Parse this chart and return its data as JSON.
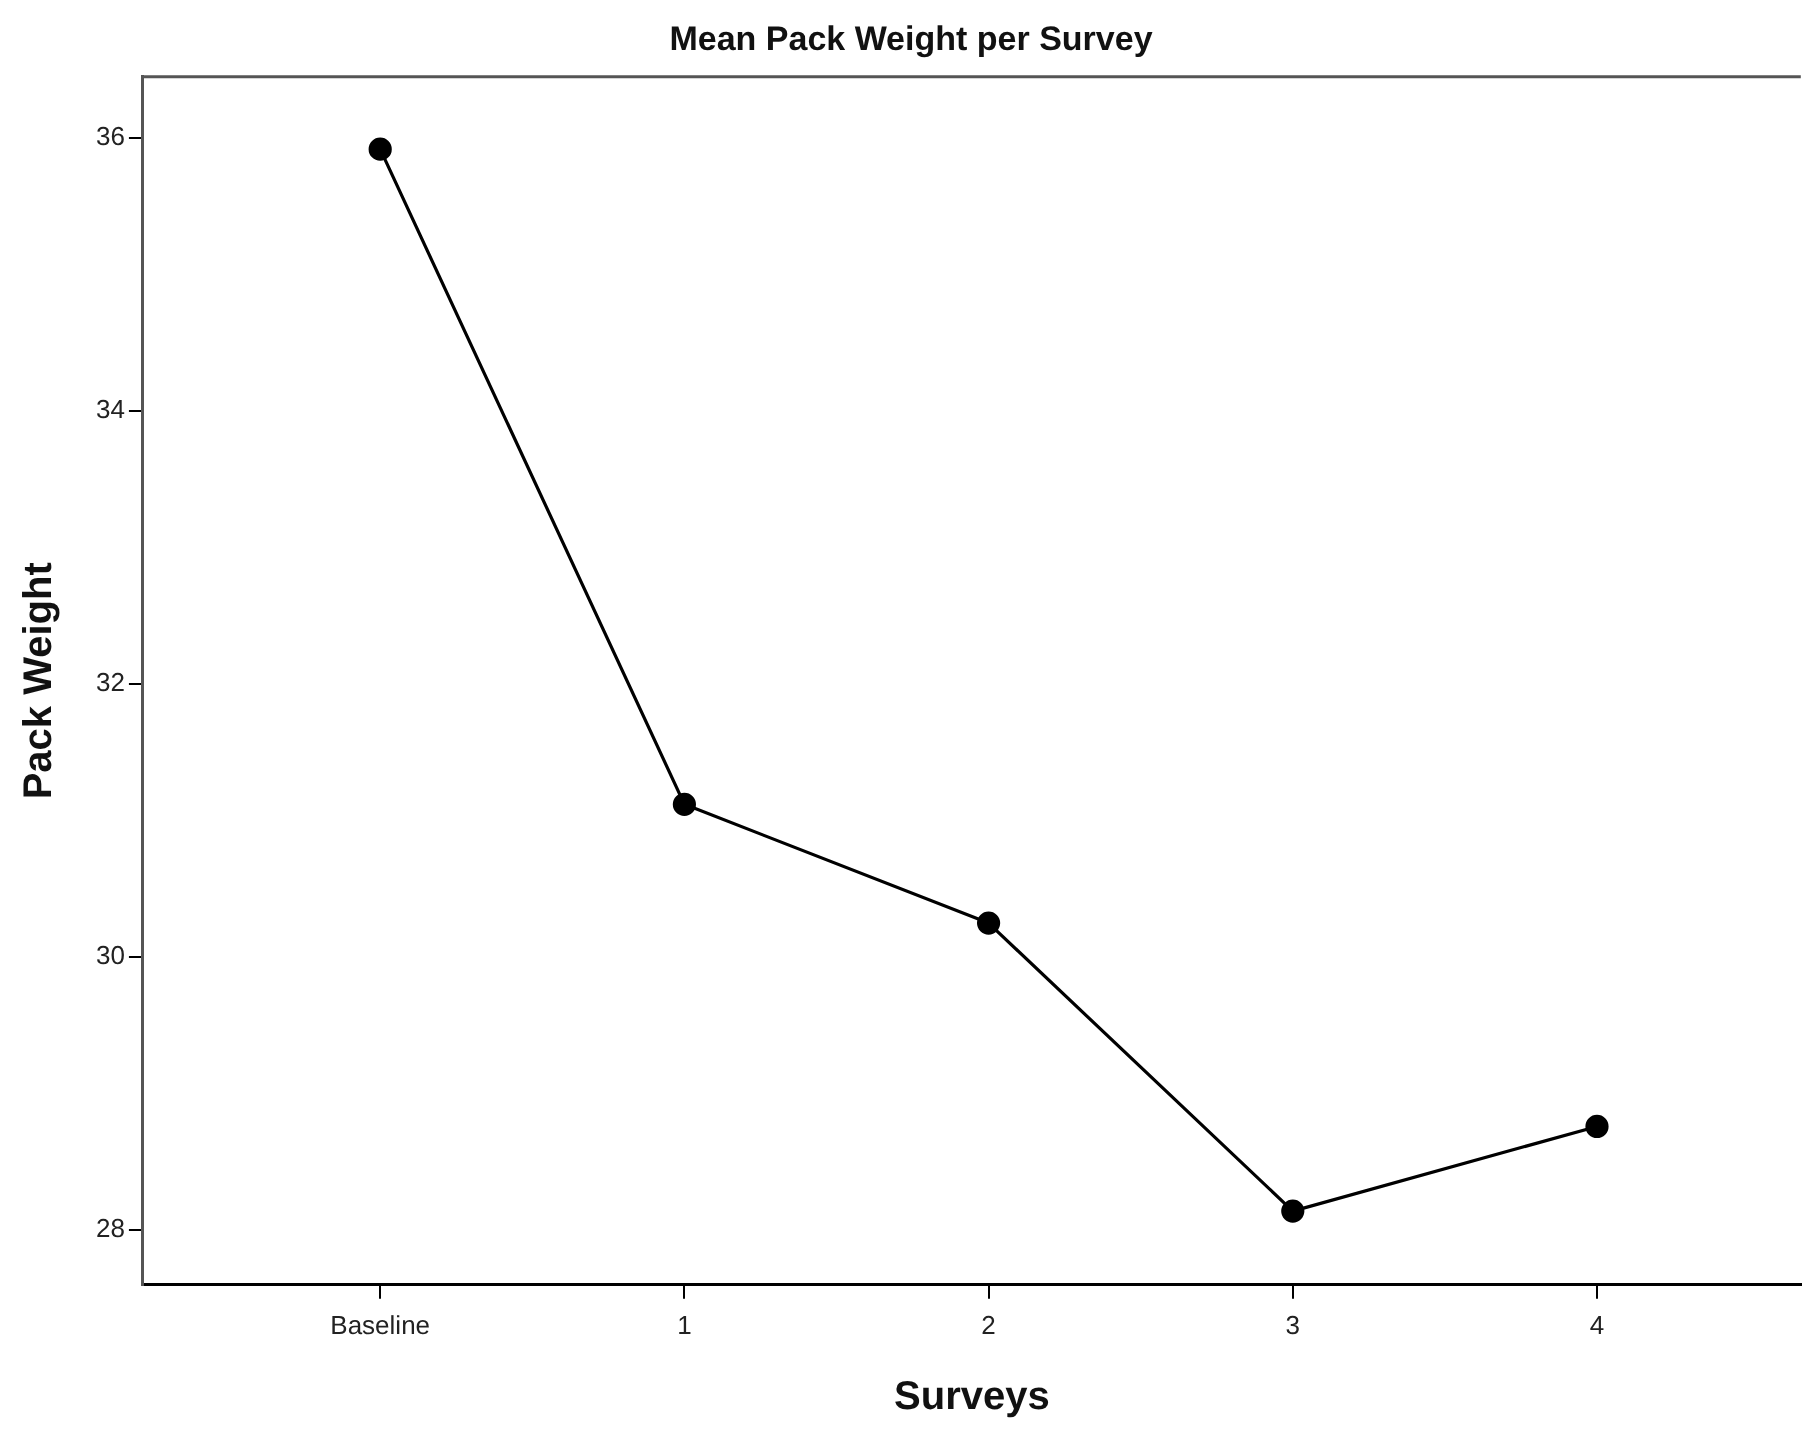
{
  "chart_data": {
    "type": "line",
    "title": "Mean Pack Weight per Survey",
    "xlabel": "Surveys",
    "ylabel": "Pack Weight",
    "categories": [
      "Baseline",
      "1",
      "2",
      "3",
      "4"
    ],
    "series": [
      {
        "color": "#000000",
        "values": [
          35.92,
          31.12,
          30.25,
          28.14,
          28.76
        ]
      }
    ],
    "ylim": [
      27.6,
      36.45
    ],
    "yticks": [
      28,
      30,
      32,
      34,
      36
    ],
    "grid": false,
    "legend": false,
    "marker": "circle",
    "line_style": "solid"
  }
}
